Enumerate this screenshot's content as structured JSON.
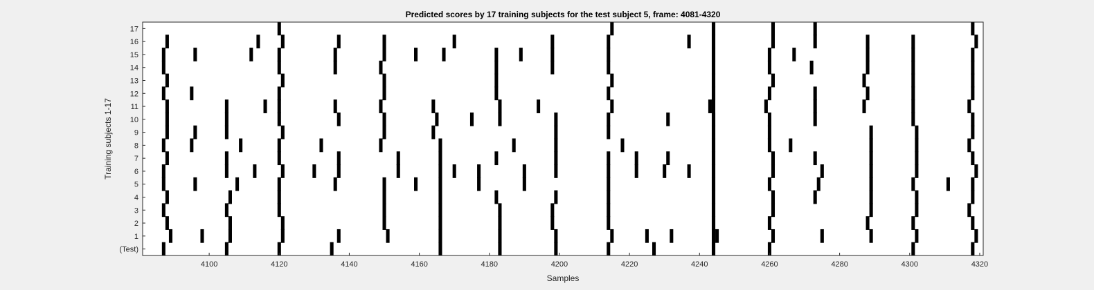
{
  "chart_data": {
    "type": "raster",
    "title": "Predicted scores by 17 training subjects for the test subject 5, frame: 4081-4320",
    "xlabel": "Samples",
    "ylabel": "Training subjects 1-17",
    "xlim": [
      4081,
      4321
    ],
    "xticks": [
      4100,
      4120,
      4140,
      4160,
      4180,
      4200,
      4220,
      4240,
      4260,
      4280,
      4300,
      4320
    ],
    "row_labels": [
      "(Test)",
      "1",
      "2",
      "3",
      "4",
      "5",
      "6",
      "7",
      "8",
      "9",
      "10",
      "11",
      "12",
      "13",
      "14",
      "15",
      "16",
      "17"
    ],
    "grid": false,
    "rows": [
      [
        4087,
        4105,
        4120,
        4135,
        4166,
        4183,
        4199,
        4214,
        4227,
        4244,
        4260,
        4301,
        4318
      ],
      [
        4089,
        4098,
        4106,
        4121,
        4137,
        4151,
        4166,
        4183,
        4199,
        4215,
        4225,
        4232,
        4245,
        4261,
        4275,
        4289,
        4302,
        4319
      ],
      [
        4088,
        4106,
        4121,
        4150,
        4166,
        4183,
        4198,
        4214,
        4244,
        4260,
        4288,
        4301,
        4318
      ],
      [
        4087,
        4105,
        4120,
        4150,
        4166,
        4183,
        4198,
        4214,
        4244,
        4261,
        4289,
        4302,
        4317
      ],
      [
        4088,
        4106,
        4120,
        4150,
        4166,
        4182,
        4199,
        4214,
        4244,
        4261,
        4273,
        4289,
        4302,
        4318
      ],
      [
        4087,
        4096,
        4108,
        4120,
        4136,
        4150,
        4159,
        4166,
        4177,
        4190,
        4214,
        4244,
        4260,
        4274,
        4289,
        4301,
        4311,
        4318
      ],
      [
        4087,
        4105,
        4113,
        4121,
        4130,
        4137,
        4154,
        4166,
        4170,
        4177,
        4190,
        4199,
        4214,
        4222,
        4230,
        4237,
        4244,
        4261,
        4275,
        4289,
        4302,
        4319
      ],
      [
        4088,
        4105,
        4120,
        4137,
        4154,
        4166,
        4182,
        4199,
        4214,
        4222,
        4231,
        4244,
        4261,
        4273,
        4289,
        4302,
        4318
      ],
      [
        4087,
        4095,
        4109,
        4120,
        4132,
        4149,
        4166,
        4187,
        4199,
        4218,
        4244,
        4260,
        4266,
        4289,
        4302,
        4317
      ],
      [
        4088,
        4096,
        4105,
        4121,
        4150,
        4164,
        4199,
        4214,
        4244,
        4260,
        4289,
        4302,
        4318
      ],
      [
        4088,
        4105,
        4120,
        4137,
        4150,
        4165,
        4175,
        4183,
        4199,
        4214,
        4231,
        4244,
        4260,
        4273,
        4301,
        4318
      ],
      [
        4088,
        4105,
        4116,
        4120,
        4136,
        4149,
        4164,
        4183,
        4194,
        4215,
        4243,
        4259,
        4273,
        4287,
        4301,
        4317
      ],
      [
        4087,
        4095,
        4120,
        4150,
        4182,
        4214,
        4244,
        4260,
        4273,
        4288,
        4301,
        4318
      ],
      [
        4088,
        4121,
        4150,
        4182,
        4215,
        4244,
        4261,
        4287,
        4301,
        4318
      ],
      [
        4087,
        4120,
        4136,
        4149,
        4182,
        4198,
        4214,
        4244,
        4260,
        4272,
        4288,
        4301,
        4318
      ],
      [
        4087,
        4096,
        4112,
        4120,
        4136,
        4150,
        4159,
        4167,
        4182,
        4189,
        4198,
        4214,
        4244,
        4260,
        4267,
        4288,
        4301,
        4318
      ],
      [
        4088,
        4114,
        4121,
        4137,
        4150,
        4170,
        4198,
        4214,
        4237,
        4244,
        4261,
        4273,
        4288,
        4301,
        4319
      ],
      [
        4120,
        4215,
        4244,
        4261,
        4273,
        4318
      ]
    ],
    "persistent_columns": [
      4244
    ],
    "mark_width": 1,
    "mark_color": "#000000"
  }
}
